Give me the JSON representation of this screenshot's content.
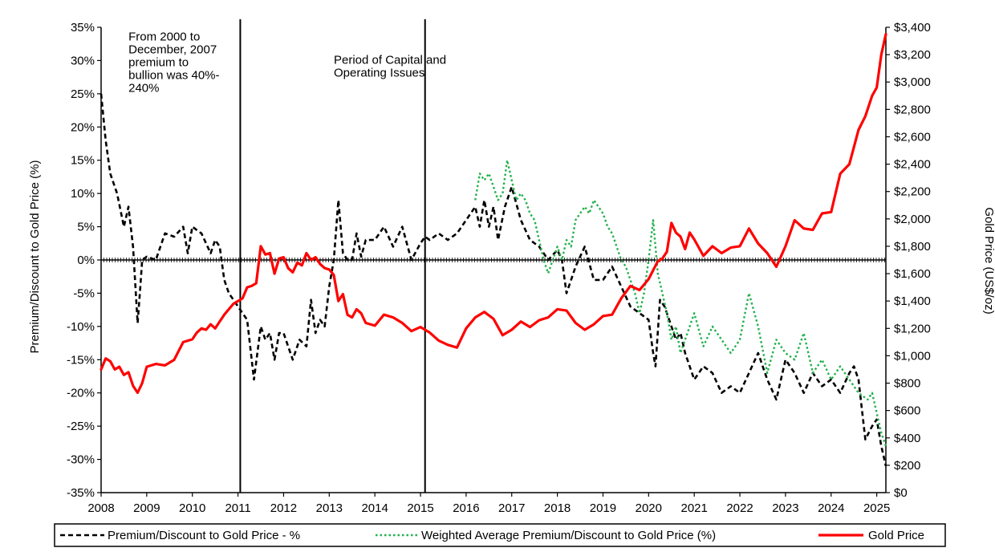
{
  "chart_data": {
    "type": "line",
    "title": "",
    "ylabel_left": "Premium/Discount to Gold Price (%)",
    "ylabel_right": "Gold Price (US$/oz)",
    "xlim": [
      2008,
      2025.2
    ],
    "ylim_left": [
      -35,
      35
    ],
    "ylim_right": [
      0,
      3400
    ],
    "x_ticks": [
      2008,
      2009,
      2010,
      2011,
      2012,
      2013,
      2014,
      2015,
      2016,
      2017,
      2018,
      2019,
      2020,
      2021,
      2022,
      2023,
      2024,
      2025
    ],
    "y_ticks_left": [
      35,
      30,
      25,
      20,
      15,
      10,
      5,
      0,
      -5,
      -10,
      -15,
      -20,
      -25,
      -30,
      -35
    ],
    "y_ticks_left_labels": [
      "35%",
      "30%",
      "25%",
      "20%",
      "15%",
      "10%",
      "5%",
      "0%",
      "-5%",
      "-10%",
      "-15%",
      "-20%",
      "-25%",
      "-30%",
      "-35%"
    ],
    "y_ticks_right": [
      3400,
      3200,
      3000,
      2800,
      2600,
      2400,
      2200,
      2000,
      1800,
      1600,
      1400,
      1200,
      1000,
      800,
      600,
      400,
      200,
      0
    ],
    "y_ticks_right_labels": [
      "$3,400",
      "$3,200",
      "$3,000",
      "$2,800",
      "$2,600",
      "$2,400",
      "$2,200",
      "$2,000",
      "$1,800",
      "$1,600",
      "$1,400",
      "$1,200",
      "$1,000",
      "$800",
      "$600",
      "$400",
      "$200",
      "$0"
    ],
    "grid": false,
    "legend_position": "bottom",
    "vertical_lines": [
      2011.05,
      2015.1
    ],
    "annotations": [
      {
        "text_lines": [
          "From 2000 to",
          "December, 2007",
          "premium to",
          "bullion was 40%-",
          "240%"
        ],
        "x": 2008.6,
        "y": 33
      },
      {
        "text_lines": [
          "Period of Capital and",
          "Operating Issues"
        ],
        "x": 2013.1,
        "y": 29.5
      }
    ],
    "series": [
      {
        "name": "Premium/Discount to Gold Price - %",
        "axis": "left",
        "style": "dashed",
        "color": "#000000",
        "x": [
          2008.0,
          2008.1,
          2008.2,
          2008.35,
          2008.5,
          2008.6,
          2008.7,
          2008.8,
          2008.85,
          2008.9,
          2009.0,
          2009.2,
          2009.4,
          2009.6,
          2009.8,
          2009.9,
          2010.0,
          2010.2,
          2010.4,
          2010.5,
          2010.6,
          2010.7,
          2010.8,
          2010.9,
          2011.0,
          2011.2,
          2011.35,
          2011.5,
          2011.6,
          2011.7,
          2011.8,
          2011.9,
          2012.0,
          2012.1,
          2012.2,
          2012.35,
          2012.5,
          2012.6,
          2012.7,
          2012.8,
          2012.9,
          2013.0,
          2013.1,
          2013.2,
          2013.3,
          2013.4,
          2013.5,
          2013.6,
          2013.7,
          2013.8,
          2014.0,
          2014.2,
          2014.4,
          2014.6,
          2014.8,
          2015.0,
          2015.1,
          2015.2,
          2015.4,
          2015.6,
          2015.8,
          2016.0,
          2016.2,
          2016.3,
          2016.4,
          2016.5,
          2016.6,
          2016.7,
          2016.85,
          2017.0,
          2017.2,
          2017.4,
          2017.6,
          2017.8,
          2018.0,
          2018.1,
          2018.2,
          2018.3,
          2018.4,
          2018.6,
          2018.8,
          2019.0,
          2019.2,
          2019.4,
          2019.6,
          2019.8,
          2020.0,
          2020.1,
          2020.15,
          2020.25,
          2020.35,
          2020.5,
          2020.6,
          2020.7,
          2020.8,
          2020.9,
          2021.0,
          2021.2,
          2021.4,
          2021.6,
          2021.8,
          2022.0,
          2022.2,
          2022.4,
          2022.6,
          2022.8,
          2023.0,
          2023.2,
          2023.4,
          2023.6,
          2023.8,
          2024.0,
          2024.2,
          2024.4,
          2024.5,
          2024.6,
          2024.75,
          2024.9,
          2025.0,
          2025.1,
          2025.2
        ],
        "values": [
          25,
          18,
          13,
          10,
          5,
          8,
          2,
          -9.5,
          -5,
          0,
          0.5,
          0,
          4,
          3.5,
          5,
          1,
          5,
          4,
          1,
          3,
          2,
          -3,
          -5,
          -6,
          -7,
          -9,
          -18,
          -10,
          -12,
          -11,
          -15,
          -11,
          -11,
          -13,
          -15,
          -12,
          -13,
          -6,
          -11,
          -9,
          -10,
          -4,
          0,
          9,
          1,
          0,
          0,
          4,
          0.5,
          3,
          3,
          5,
          2,
          5,
          0,
          2.5,
          3.5,
          3,
          4,
          3,
          4,
          6,
          8,
          5,
          9,
          5,
          8,
          3,
          8,
          11,
          6,
          3,
          2,
          0,
          1.5,
          0,
          -5,
          -3,
          -1,
          2,
          -3,
          -3,
          -1,
          -4,
          -7,
          -8,
          -9,
          -14,
          -16,
          -6,
          -7,
          -10,
          -12,
          -11,
          -14,
          -16,
          -18,
          -16,
          -17,
          -20,
          -19,
          -20,
          -17,
          -14,
          -18,
          -21,
          -15,
          -17,
          -20,
          -17,
          -19,
          -18,
          -20,
          -17,
          -16,
          -18,
          -27,
          -25,
          -24,
          -28,
          -31
        ],
        "x_alt": []
      },
      {
        "name": "Weighted Average Premium/Discount to Gold Price (%)",
        "axis": "left",
        "style": "dotted",
        "color": "#22b14c",
        "x": [
          2016.2,
          2016.3,
          2016.4,
          2016.5,
          2016.6,
          2016.7,
          2016.8,
          2016.9,
          2017.0,
          2017.1,
          2017.2,
          2017.3,
          2017.4,
          2017.5,
          2017.6,
          2017.7,
          2017.8,
          2017.9,
          2018.0,
          2018.1,
          2018.2,
          2018.3,
          2018.4,
          2018.5,
          2018.6,
          2018.7,
          2018.8,
          2018.9,
          2019.0,
          2019.1,
          2019.2,
          2019.3,
          2019.4,
          2019.5,
          2019.6,
          2019.7,
          2019.8,
          2019.9,
          2020.0,
          2020.1,
          2020.2,
          2020.3,
          2020.4,
          2020.5,
          2020.6,
          2020.7,
          2020.8,
          2021.0,
          2021.2,
          2021.4,
          2021.6,
          2021.8,
          2022.0,
          2022.2,
          2022.4,
          2022.6,
          2022.8,
          2023.0,
          2023.2,
          2023.4,
          2023.6,
          2023.8,
          2024.0,
          2024.2,
          2024.4,
          2024.6,
          2024.8,
          2024.9,
          2025.0,
          2025.1,
          2025.2
        ],
        "values": [
          9,
          13,
          12,
          13,
          11,
          9,
          10,
          15,
          12,
          9,
          10,
          9,
          7,
          6,
          3,
          0,
          -2,
          0,
          2,
          0,
          3,
          2,
          6,
          7,
          8,
          7,
          9,
          8,
          7,
          5,
          4,
          2,
          0,
          -1,
          -3,
          -5,
          -8,
          -5,
          0,
          6,
          -2,
          -5,
          -8,
          -12,
          -10,
          -14,
          -12,
          -8,
          -13,
          -10,
          -12,
          -14,
          -12,
          -5,
          -10,
          -17,
          -12,
          -14,
          -15,
          -11,
          -17,
          -15,
          -18,
          -16,
          -18,
          -20,
          -21,
          -20,
          -23,
          -26,
          -28
        ]
      },
      {
        "name": "Gold Price",
        "axis": "right",
        "style": "solid",
        "color": "#ff0000",
        "x": [
          2008.0,
          2008.1,
          2008.2,
          2008.3,
          2008.4,
          2008.5,
          2008.6,
          2008.7,
          2008.8,
          2008.9,
          2009.0,
          2009.2,
          2009.4,
          2009.6,
          2009.8,
          2010.0,
          2010.1,
          2010.2,
          2010.3,
          2010.4,
          2010.5,
          2010.6,
          2010.7,
          2010.8,
          2010.9,
          2011.0,
          2011.1,
          2011.2,
          2011.3,
          2011.4,
          2011.5,
          2011.6,
          2011.7,
          2011.8,
          2011.9,
          2012.0,
          2012.1,
          2012.2,
          2012.3,
          2012.4,
          2012.5,
          2012.6,
          2012.7,
          2012.8,
          2012.9,
          2013.0,
          2013.1,
          2013.2,
          2013.3,
          2013.4,
          2013.5,
          2013.6,
          2013.7,
          2013.8,
          2014.0,
          2014.2,
          2014.4,
          2014.6,
          2014.8,
          2015.0,
          2015.2,
          2015.4,
          2015.6,
          2015.8,
          2016.0,
          2016.2,
          2016.4,
          2016.6,
          2016.8,
          2017.0,
          2017.2,
          2017.4,
          2017.6,
          2017.8,
          2018.0,
          2018.2,
          2018.4,
          2018.6,
          2018.8,
          2019.0,
          2019.2,
          2019.4,
          2019.6,
          2019.8,
          2020.0,
          2020.2,
          2020.3,
          2020.4,
          2020.5,
          2020.6,
          2020.7,
          2020.8,
          2020.9,
          2021.0,
          2021.2,
          2021.4,
          2021.6,
          2021.8,
          2022.0,
          2022.2,
          2022.4,
          2022.6,
          2022.8,
          2023.0,
          2023.2,
          2023.4,
          2023.6,
          2023.8,
          2024.0,
          2024.2,
          2024.4,
          2024.6,
          2024.75,
          2024.9,
          2025.0,
          2025.1,
          2025.2
        ],
        "values": [
          900,
          980,
          960,
          900,
          920,
          860,
          880,
          780,
          730,
          800,
          920,
          940,
          930,
          970,
          1100,
          1120,
          1170,
          1200,
          1190,
          1230,
          1200,
          1250,
          1300,
          1340,
          1380,
          1400,
          1420,
          1500,
          1510,
          1530,
          1800,
          1740,
          1750,
          1600,
          1710,
          1720,
          1640,
          1610,
          1680,
          1660,
          1750,
          1700,
          1720,
          1670,
          1640,
          1630,
          1590,
          1400,
          1450,
          1300,
          1280,
          1340,
          1310,
          1240,
          1220,
          1300,
          1280,
          1240,
          1180,
          1210,
          1170,
          1110,
          1080,
          1060,
          1200,
          1280,
          1320,
          1270,
          1150,
          1190,
          1250,
          1210,
          1260,
          1280,
          1340,
          1330,
          1240,
          1190,
          1230,
          1290,
          1300,
          1420,
          1510,
          1480,
          1560,
          1690,
          1710,
          1760,
          1970,
          1900,
          1870,
          1780,
          1900,
          1850,
          1730,
          1800,
          1750,
          1790,
          1800,
          1930,
          1820,
          1750,
          1650,
          1800,
          1990,
          1930,
          1920,
          2040,
          2050,
          2330,
          2400,
          2650,
          2750,
          2900,
          2960,
          3200,
          3350
        ]
      }
    ]
  }
}
